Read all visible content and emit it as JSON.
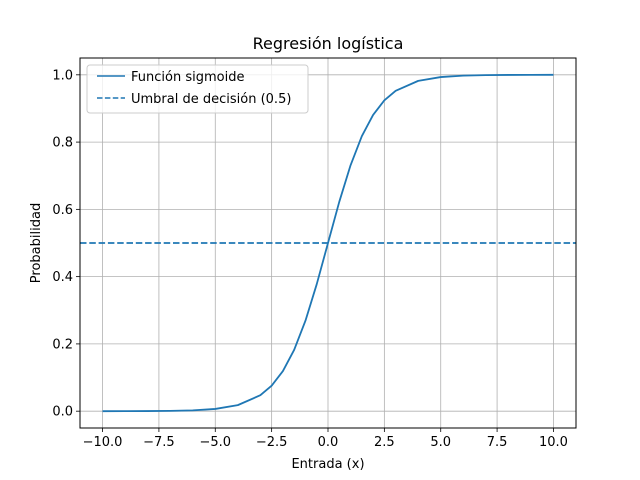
{
  "chart_data": {
    "type": "line",
    "title": "Regresión logística",
    "xlabel": "Entrada (x)",
    "ylabel": "Probabilidad",
    "xlim": [
      -11,
      11
    ],
    "ylim": [
      -0.05,
      1.05
    ],
    "xticks": [
      -10.0,
      -7.5,
      -5.0,
      -2.5,
      0.0,
      2.5,
      5.0,
      7.5,
      10.0
    ],
    "xtick_labels": [
      "−10.0",
      "−7.5",
      "−5.0",
      "−2.5",
      "0.0",
      "2.5",
      "5.0",
      "7.5",
      "10.0"
    ],
    "yticks": [
      0.0,
      0.2,
      0.4,
      0.6,
      0.8,
      1.0
    ],
    "ytick_labels": [
      "0.0",
      "0.2",
      "0.4",
      "0.6",
      "0.8",
      "1.0"
    ],
    "grid": true,
    "legend_position": "upper-left",
    "series": [
      {
        "name": "Función sigmoide",
        "style": "solid",
        "color": "#1f77b4",
        "x": [
          -10,
          -9,
          -8,
          -7,
          -6,
          -5,
          -4,
          -3,
          -2.5,
          -2,
          -1.5,
          -1,
          -0.5,
          0,
          0.5,
          1,
          1.5,
          2,
          2.5,
          3,
          4,
          5,
          6,
          7,
          8,
          9,
          10
        ],
        "y": [
          4.54e-05,
          0.0001234,
          0.0003354,
          0.0009111,
          0.0024726,
          0.0066929,
          0.0179862,
          0.0474259,
          0.0758582,
          0.1192029,
          0.1824255,
          0.2689414,
          0.3775407,
          0.5,
          0.6224593,
          0.7310586,
          0.8175745,
          0.8807971,
          0.9241418,
          0.9525741,
          0.9820138,
          0.9933071,
          0.9975274,
          0.9990889,
          0.9996646,
          0.9998766,
          0.9999546
        ]
      },
      {
        "name": "Umbral de decisión (0.5)",
        "style": "dashed",
        "color": "#1f77b4",
        "y": 0.5
      }
    ]
  }
}
